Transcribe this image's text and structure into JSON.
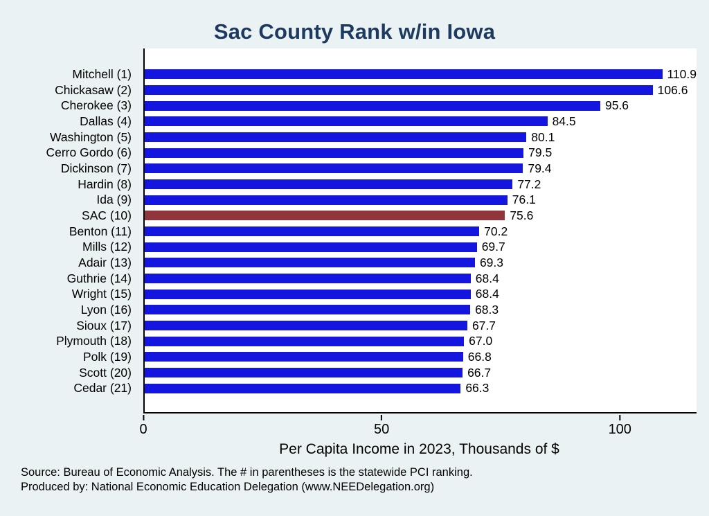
{
  "chart_data": {
    "type": "bar",
    "orientation": "horizontal",
    "title": "Sac County Rank w/in Iowa",
    "xlabel": "Per Capita Income in 2023, Thousands of $",
    "x_ticks": [
      0,
      50,
      100
    ],
    "xlim": [
      0,
      115.8
    ],
    "grid": false,
    "legend": false,
    "categories": [
      "Mitchell  (1)",
      "Chickasaw  (2)",
      "Cherokee  (3)",
      "Dallas  (4)",
      "Washington  (5)",
      "Cerro Gordo  (6)",
      "Dickinson  (7)",
      "Hardin  (8)",
      "Ida  (9)",
      "SAC (10)",
      "Benton (11)",
      "Mills (12)",
      "Adair (13)",
      "Guthrie (14)",
      "Wright (15)",
      "Lyon (16)",
      "Sioux (17)",
      "Plymouth (18)",
      "Polk (19)",
      "Scott (20)",
      "Cedar (21)"
    ],
    "values": [
      110.9,
      106.6,
      95.6,
      84.5,
      80.1,
      79.5,
      79.4,
      77.2,
      76.1,
      75.6,
      70.2,
      69.7,
      69.3,
      68.4,
      68.4,
      68.3,
      67.7,
      67.0,
      66.8,
      66.7,
      66.3
    ],
    "value_labels": [
      "110.9",
      "106.6",
      "95.6",
      "84.5",
      "80.1",
      "79.5",
      "79.4",
      "77.2",
      "76.1",
      "75.6",
      "70.2",
      "69.7",
      "69.3",
      "68.4",
      "68.4",
      "68.3",
      "67.7",
      "67.0",
      "66.8",
      "66.7",
      "66.3"
    ],
    "highlight_index": 9,
    "bar_color": "#1515e0",
    "highlight_color": "#90353b",
    "background_color": "#eaf2f3",
    "plot_background_color": "#ffffff",
    "title_color": "#1f3a5f"
  },
  "footer": {
    "line1": "Source: Bureau of Economic Analysis. The # in parentheses is the statewide PCI ranking.",
    "line2": "Produced by: National Economic Education Delegation (www.NEEDelegation.org)"
  }
}
